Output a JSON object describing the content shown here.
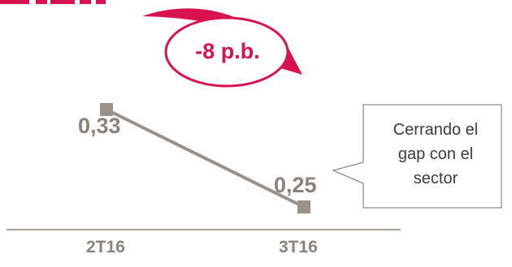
{
  "chart_data": {
    "type": "line",
    "categories": [
      "2T16",
      "3T16"
    ],
    "series": [
      {
        "values": [
          0.33,
          0.25
        ]
      }
    ],
    "value_labels": [
      "0,33",
      "0,25"
    ],
    "ylim": [
      0.2,
      0.4
    ],
    "grid": false,
    "line_color": "#9b9188",
    "marker_color": "#9b9188",
    "text_color": "#8c8279"
  },
  "change_badge": {
    "text": "-8 p.b.",
    "color": "#d8124e"
  },
  "callout": {
    "lines": [
      "Cerrando el",
      "gap con el",
      "sector"
    ]
  },
  "header_partial_text": "",
  "accent_color": "#d8124e"
}
